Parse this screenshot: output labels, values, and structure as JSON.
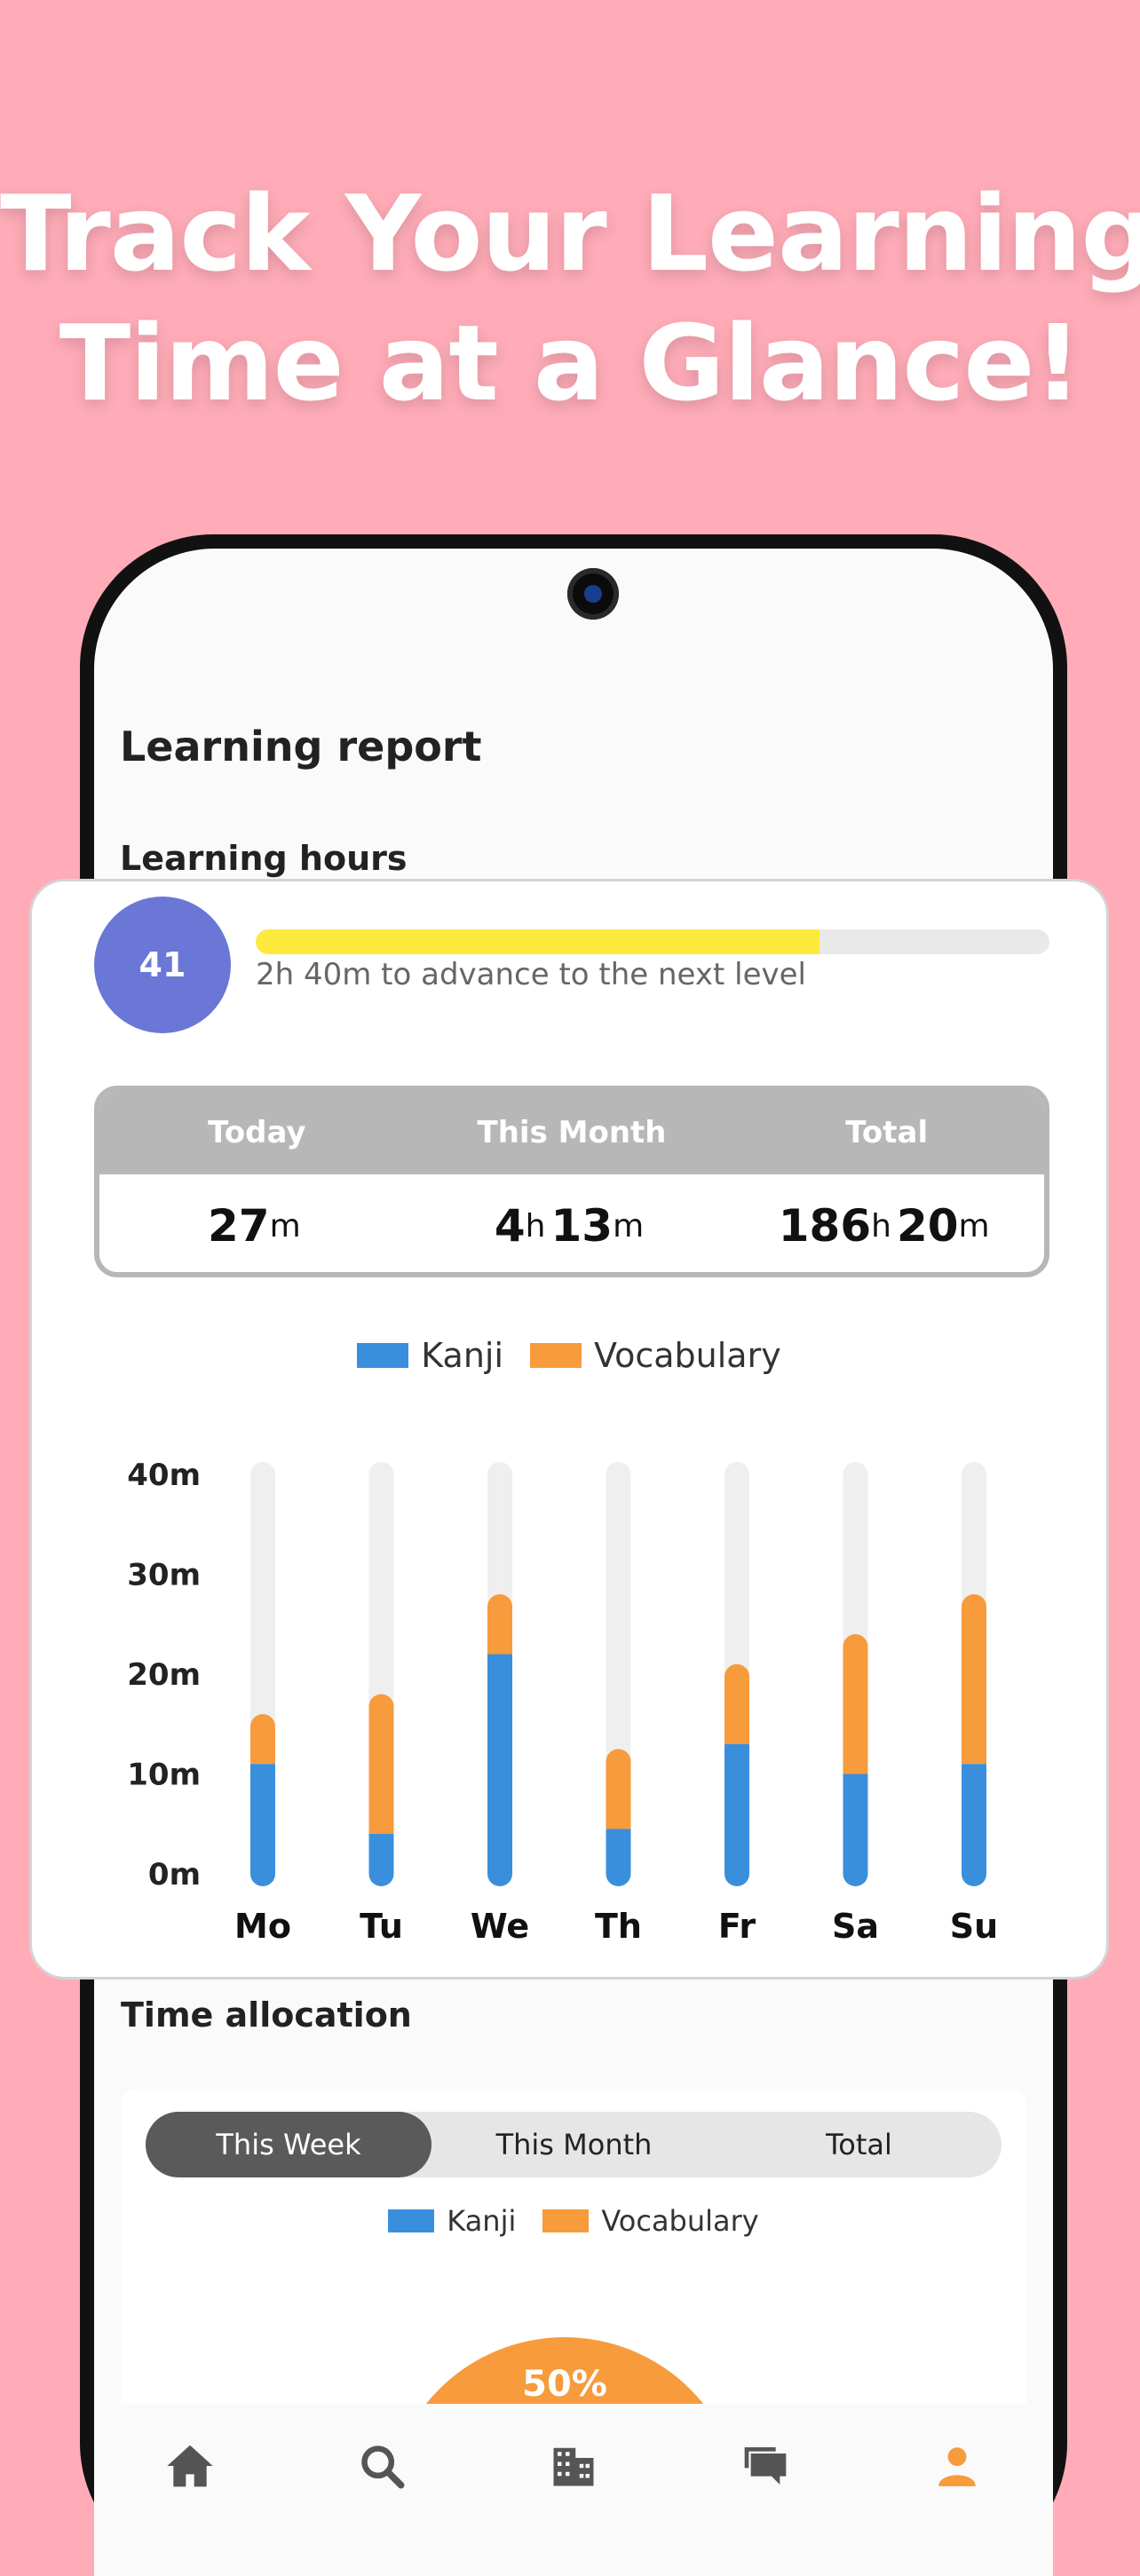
{
  "headline": {
    "line1": "Track Your Learning",
    "line2": "Time at a Glance!"
  },
  "screen": {
    "title": "Learning report",
    "subtitle": "Learning hours",
    "allocation_title": "Time allocation"
  },
  "level_card": {
    "level": "41",
    "progress_fraction": 0.71,
    "progress_text": "2h 40m to advance to the next level"
  },
  "stats": {
    "headers": [
      "Today",
      "This Month",
      "Total"
    ],
    "today": {
      "m": "27",
      "m_unit": "m"
    },
    "month": {
      "h": "4",
      "h_unit": "h",
      "m": "13",
      "m_unit": "m"
    },
    "total": {
      "h": "186",
      "h_unit": "h",
      "m": "20",
      "m_unit": "m"
    }
  },
  "legend": {
    "kanji": "Kanji",
    "vocabulary": "Vocabulary"
  },
  "colors": {
    "kanji": "#3a8fdd",
    "vocabulary": "#f79b3c",
    "track": "#efefef",
    "level": "#6a77d6",
    "progress": "#fde93c"
  },
  "chart_data": {
    "type": "bar",
    "stacked": true,
    "categories": [
      "Mo",
      "Tu",
      "We",
      "Th",
      "Fr",
      "Sa",
      "Su"
    ],
    "series": [
      {
        "name": "Kanji",
        "values": [
          11,
          4,
          22,
          4.5,
          13,
          10,
          11
        ]
      },
      {
        "name": "Vocabulary",
        "values": [
          5,
          14,
          6,
          8,
          8,
          14,
          17
        ]
      }
    ],
    "yticks": [
      "0m",
      "10m",
      "20m",
      "30m",
      "40m"
    ],
    "ylim": [
      0,
      40
    ],
    "legend_position": "top-center",
    "grid": false
  },
  "allocation": {
    "tabs": [
      "This Week",
      "This Month",
      "Total"
    ],
    "active_tab": 0,
    "pie_label": "50%"
  },
  "nav": {
    "icons": [
      "home-icon",
      "search-icon",
      "building-icon",
      "chat-icon",
      "person-icon"
    ]
  }
}
